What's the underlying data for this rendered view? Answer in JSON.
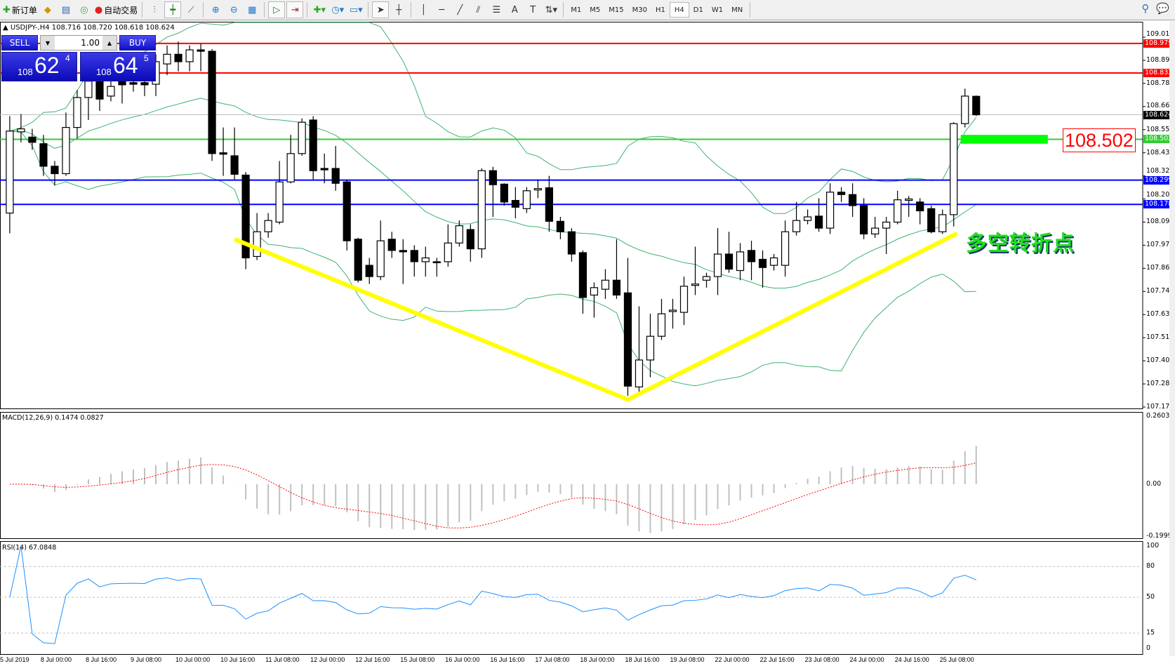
{
  "toolbar": {
    "new_order": "新订单",
    "auto_trading": "自动交易",
    "timeframes": [
      "M1",
      "M5",
      "M15",
      "M30",
      "H1",
      "H4",
      "D1",
      "W1",
      "MN"
    ],
    "active_timeframe": "H4",
    "icons": [
      "new-order-icon",
      "market-watch-icon",
      "navigator-icon",
      "signal-icon",
      "auto-trading-icon",
      "bar-chart-icon",
      "candlestick-icon",
      "line-chart-icon",
      "zoom-in-icon",
      "zoom-out-icon",
      "tile-icon",
      "autoscroll-icon",
      "chart-shift-icon",
      "indicators-icon",
      "periods-icon",
      "templates-icon",
      "cursor-icon",
      "crosshair-icon",
      "vertical-line-icon",
      "horizontal-line-icon",
      "trendline-icon",
      "channel-icon",
      "fibonacci-icon",
      "text-icon",
      "label-icon",
      "arrows-icon",
      "search-icon",
      "chat-icon"
    ]
  },
  "chart": {
    "title": "USDJPY-,H4  108.716 108.720 108.618 108.624",
    "trade_panel": {
      "sell_label": "SELL",
      "buy_label": "BUY",
      "lot": "1.00",
      "sell_price": {
        "prefix": "108",
        "big": "62",
        "sup": "4"
      },
      "buy_price": {
        "prefix": "108",
        "big": "64",
        "sup": "5"
      }
    },
    "price_axis": [
      "109.010",
      "108.895",
      "108.780",
      "108.665",
      "108.550",
      "108.435",
      "108.320",
      "108.205",
      "108.090",
      "107.975",
      "107.860",
      "107.745",
      "107.630",
      "107.515",
      "107.400",
      "107.285",
      "107.170"
    ],
    "levels": [
      {
        "price": "108.979",
        "color": "#ff0000"
      },
      {
        "price": "108.832",
        "color": "#ff0000"
      },
      {
        "price": "108.624",
        "color": "#000000",
        "current": true
      },
      {
        "price": "108.502",
        "color": "#33cc33"
      },
      {
        "price": "108.299",
        "color": "#0000ff"
      },
      {
        "price": "108.178",
        "color": "#0000ff"
      }
    ],
    "level_label": "108.502",
    "annotation": "多空转折点",
    "green_zone": {
      "from_bar": 85,
      "to_bar": 92,
      "high": 108.524,
      "low": 108.48,
      "color": "#00ff00"
    },
    "trend_points": [
      {
        "bar": 20,
        "price": 108.005
      },
      {
        "bar": 55,
        "price": 107.207
      },
      {
        "bar": 84.3,
        "price": 108.034
      }
    ],
    "trend_color": "#ffff00",
    "band_color": "#3cb371",
    "time_axis": [
      "5 Jul 2019",
      "8 Jul 00:00",
      "8 Jul 16:00",
      "9 Jul 08:00",
      "10 Jul 00:00",
      "10 Jul 16:00",
      "11 Jul 08:00",
      "12 Jul 00:00",
      "12 Jul 16:00",
      "15 Jul 08:00",
      "16 Jul 00:00",
      "16 Jul 16:00",
      "17 Jul 08:00",
      "18 Jul 00:00",
      "18 Jul 16:00",
      "19 Jul 08:00",
      "22 Jul 00:00",
      "22 Jul 16:00",
      "23 Jul 08:00",
      "24 Jul 00:00",
      "24 Jul 16:00",
      "25 Jul 08:00"
    ]
  },
  "chart_data": {
    "type": "candlestick",
    "symbol": "USDJPY-",
    "timeframe": "H4",
    "ylim": [
      107.17,
      109.01
    ],
    "ohlc": [
      [
        108.135,
        108.617,
        108.034,
        108.543
      ],
      [
        108.539,
        108.628,
        108.487,
        108.554
      ],
      [
        108.513,
        108.554,
        108.45,
        108.487
      ],
      [
        108.48,
        108.524,
        108.32,
        108.368
      ],
      [
        108.368,
        108.394,
        108.272,
        108.331
      ],
      [
        108.331,
        108.635,
        108.32,
        108.561
      ],
      [
        108.561,
        108.747,
        108.506,
        108.71
      ],
      [
        108.71,
        108.851,
        108.598,
        108.791
      ],
      [
        108.791,
        108.84,
        108.643,
        108.702
      ],
      [
        108.717,
        108.802,
        108.691,
        108.765
      ],
      [
        108.791,
        108.84,
        108.68,
        108.773
      ],
      [
        108.784,
        108.821,
        108.739,
        108.776
      ],
      [
        108.784,
        108.821,
        108.717,
        108.773
      ],
      [
        108.776,
        108.925,
        108.717,
        108.888
      ],
      [
        108.877,
        108.969,
        108.821,
        108.925
      ],
      [
        108.925,
        108.988,
        108.84,
        108.888
      ],
      [
        108.888,
        108.969,
        108.84,
        108.947
      ],
      [
        108.947,
        108.977,
        108.84,
        108.94
      ],
      [
        108.94,
        108.951,
        108.394,
        108.431
      ],
      [
        108.435,
        108.561,
        108.32,
        108.428
      ],
      [
        108.42,
        108.561,
        108.302,
        108.328
      ],
      [
        108.324,
        108.339,
        107.856,
        107.912
      ],
      [
        107.919,
        108.135,
        107.901,
        108.042
      ],
      [
        108.042,
        108.135,
        108.012,
        108.098
      ],
      [
        108.09,
        108.394,
        108.079,
        108.29
      ],
      [
        108.29,
        108.524,
        108.283,
        108.431
      ],
      [
        108.431,
        108.606,
        108.42,
        108.587
      ],
      [
        108.598,
        108.617,
        108.302,
        108.346
      ],
      [
        108.357,
        108.431,
        108.283,
        108.35
      ],
      [
        108.357,
        108.469,
        108.246,
        108.283
      ],
      [
        108.29,
        108.302,
        107.949,
        107.997
      ],
      [
        108.005,
        108.012,
        107.79,
        107.801
      ],
      [
        107.875,
        107.912,
        107.782,
        107.819
      ],
      [
        107.819,
        108.098,
        107.801,
        107.997
      ],
      [
        108.005,
        108.042,
        107.912,
        107.949
      ],
      [
        107.949,
        108.005,
        107.782,
        107.942
      ],
      [
        107.949,
        107.975,
        107.819,
        107.893
      ],
      [
        107.893,
        107.968,
        107.819,
        107.912
      ],
      [
        107.893,
        107.912,
        107.819,
        107.89
      ],
      [
        107.893,
        108.079,
        107.868,
        107.986
      ],
      [
        107.986,
        108.098,
        107.968,
        108.072
      ],
      [
        108.053,
        108.079,
        107.893,
        107.957
      ],
      [
        107.957,
        108.357,
        107.912,
        108.346
      ],
      [
        108.346,
        108.365,
        108.116,
        108.276
      ],
      [
        108.279,
        108.283,
        108.172,
        108.19
      ],
      [
        108.198,
        108.264,
        108.109,
        108.164
      ],
      [
        108.157,
        108.264,
        108.135,
        108.246
      ],
      [
        108.25,
        108.302,
        108.209,
        108.257
      ],
      [
        108.261,
        108.32,
        108.042,
        108.094
      ],
      [
        108.094,
        108.116,
        108.005,
        108.042
      ],
      [
        108.042,
        108.06,
        107.893,
        107.931
      ],
      [
        107.938,
        107.949,
        107.634,
        107.715
      ],
      [
        107.727,
        107.79,
        107.615,
        107.764
      ],
      [
        107.756,
        107.856,
        107.708,
        107.801
      ],
      [
        107.801,
        108.005,
        107.708,
        107.727
      ],
      [
        107.738,
        107.912,
        107.226,
        107.274
      ],
      [
        107.27,
        107.671,
        107.226,
        107.404
      ],
      [
        107.404,
        107.634,
        107.318,
        107.522
      ],
      [
        107.522,
        107.708,
        107.504,
        107.634
      ],
      [
        107.645,
        107.708,
        107.56,
        107.652
      ],
      [
        107.641,
        107.819,
        107.578,
        107.771
      ],
      [
        107.775,
        107.968,
        107.727,
        107.782
      ],
      [
        107.801,
        107.838,
        107.764,
        107.819
      ],
      [
        107.819,
        108.06,
        107.727,
        107.931
      ],
      [
        107.931,
        108.042,
        107.838,
        107.856
      ],
      [
        107.849,
        107.986,
        107.801,
        107.942
      ],
      [
        107.949,
        107.997,
        107.801,
        107.893
      ],
      [
        107.905,
        107.949,
        107.764,
        107.864
      ],
      [
        107.875,
        107.931,
        107.849,
        107.912
      ],
      [
        107.875,
        108.098,
        107.819,
        108.042
      ],
      [
        108.042,
        108.19,
        108.023,
        108.098
      ],
      [
        108.098,
        108.153,
        108.079,
        108.116
      ],
      [
        108.12,
        108.209,
        108.042,
        108.06
      ],
      [
        108.06,
        108.283,
        108.031,
        108.239
      ],
      [
        108.239,
        108.264,
        108.19,
        108.227
      ],
      [
        108.227,
        108.283,
        108.116,
        108.172
      ],
      [
        108.172,
        108.209,
        108.005,
        108.031
      ],
      [
        108.031,
        108.116,
        108.012,
        108.06
      ],
      [
        108.06,
        108.116,
        107.931,
        108.09
      ],
      [
        108.09,
        108.246,
        108.079,
        108.201
      ],
      [
        108.198,
        108.22,
        108.116,
        108.205
      ],
      [
        108.19,
        108.209,
        108.079,
        108.146
      ],
      [
        108.157,
        108.172,
        108.034,
        108.042
      ],
      [
        108.042,
        108.153,
        108.031,
        108.127
      ],
      [
        108.127,
        108.587,
        108.068,
        108.58
      ],
      [
        108.58,
        108.754,
        108.561,
        108.717
      ],
      [
        108.716,
        108.72,
        108.618,
        108.624
      ]
    ],
    "bollinger": {
      "period": 20,
      "deviation": 2
    },
    "macd": {
      "title": "MACD(12,26,9) 0.1474 0.0827",
      "ylim": [
        -0.1999,
        0.2603
      ],
      "axis": [
        "0.2603",
        "0.00",
        "-0.1999"
      ],
      "hist_color": "#c0c0c0",
      "signal_color": "#ff0000"
    },
    "rsi": {
      "title": "RSI(14) 67.0848",
      "ylim": [
        0,
        100
      ],
      "axis": [
        "100",
        "80",
        "50",
        "15",
        "0"
      ],
      "levels": [
        80,
        50,
        15
      ],
      "color": "#1e90ff"
    }
  }
}
